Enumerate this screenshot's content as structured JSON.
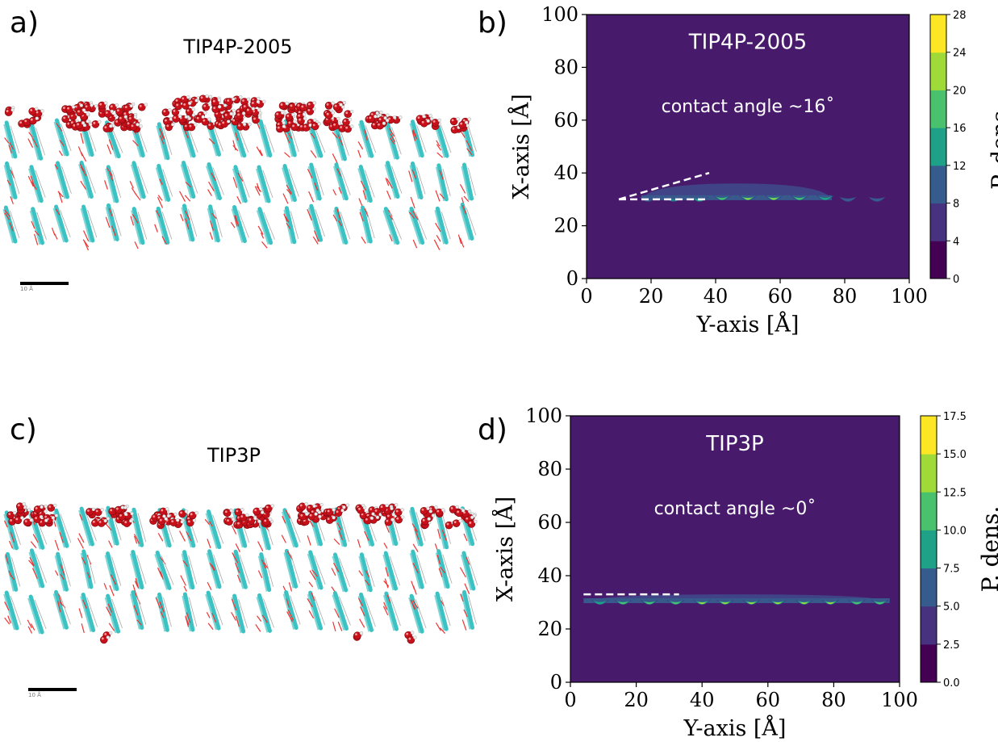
{
  "panels": {
    "a": {
      "label": "a)",
      "title": "TIP4P-2005",
      "scale_text": "10 Å"
    },
    "b": {
      "label": "b)"
    },
    "c": {
      "label": "c)",
      "title": "TIP3P",
      "scale_text": "10 Å"
    },
    "d": {
      "label": "d)"
    }
  },
  "chart_data": [
    {
      "type": "heatmap",
      "panel": "b",
      "title": "TIP4P-2005",
      "annotation": "contact angle ~16˚",
      "xlabel": "Y-axis [Å]",
      "ylabel": "X-axis [Å]",
      "xlim": [
        0,
        100
      ],
      "ylim": [
        0,
        100
      ],
      "xticks": [
        0,
        20,
        40,
        60,
        80,
        100
      ],
      "yticks": [
        0,
        20,
        40,
        60,
        80,
        100
      ],
      "colorbar": {
        "label": "P. dens.",
        "ticks": [
          0,
          4,
          8,
          12,
          16,
          20,
          24,
          28
        ],
        "levels": 7
      },
      "film": {
        "x_start": 17,
        "x_end": 76,
        "y_base": 30,
        "y_top": 36
      },
      "peaks": [
        {
          "x": 19,
          "y": 29.5,
          "value": 9
        },
        {
          "x": 27,
          "y": 29.5,
          "value": 13
        },
        {
          "x": 35,
          "y": 29.5,
          "value": 16
        },
        {
          "x": 42,
          "y": 30,
          "value": 20
        },
        {
          "x": 50,
          "y": 30,
          "value": 24
        },
        {
          "x": 58,
          "y": 30,
          "value": 24
        },
        {
          "x": 66,
          "y": 30,
          "value": 20
        },
        {
          "x": 74,
          "y": 30,
          "value": 14
        },
        {
          "x": 81,
          "y": 29.5,
          "value": 9
        },
        {
          "x": 90,
          "y": 29.5,
          "value": 6
        }
      ],
      "guide_lines": [
        {
          "x1": 10,
          "y1": 30,
          "x2": 38,
          "y2": 40
        },
        {
          "x1": 10,
          "y1": 30,
          "x2": 38,
          "y2": 30
        }
      ]
    },
    {
      "type": "heatmap",
      "panel": "d",
      "title": "TIP3P",
      "annotation": "contact angle ~0˚",
      "xlabel": "Y-axis [Å]",
      "ylabel": "X-axis [Å]",
      "xlim": [
        0,
        100
      ],
      "ylim": [
        0,
        100
      ],
      "xticks": [
        0,
        20,
        40,
        60,
        80,
        100
      ],
      "yticks": [
        0,
        20,
        40,
        60,
        80,
        100
      ],
      "colorbar": {
        "label": "P. dens.",
        "ticks": [
          "0.0",
          "2.5",
          "5.0",
          "7.5",
          "10.0",
          "12.5",
          "15.0",
          "17.5"
        ],
        "levels": 7
      },
      "film": {
        "x_start": 4,
        "x_end": 97,
        "y_base": 30,
        "y_top": 33
      },
      "peaks": [
        {
          "x": 9,
          "y": 29.5,
          "value": 11
        },
        {
          "x": 16,
          "y": 29.5,
          "value": 12
        },
        {
          "x": 24,
          "y": 29.5,
          "value": 13
        },
        {
          "x": 32,
          "y": 29.5,
          "value": 13
        },
        {
          "x": 40,
          "y": 29.5,
          "value": 14
        },
        {
          "x": 47,
          "y": 29.5,
          "value": 14
        },
        {
          "x": 55,
          "y": 29.5,
          "value": 15
        },
        {
          "x": 63,
          "y": 29.5,
          "value": 15
        },
        {
          "x": 71,
          "y": 29.5,
          "value": 14
        },
        {
          "x": 79,
          "y": 29.5,
          "value": 14
        },
        {
          "x": 87,
          "y": 29.5,
          "value": 13
        },
        {
          "x": 94,
          "y": 29.5,
          "value": 12
        }
      ],
      "guide_lines": [
        {
          "x1": 4,
          "y1": 33,
          "x2": 33,
          "y2": 33
        }
      ]
    }
  ]
}
